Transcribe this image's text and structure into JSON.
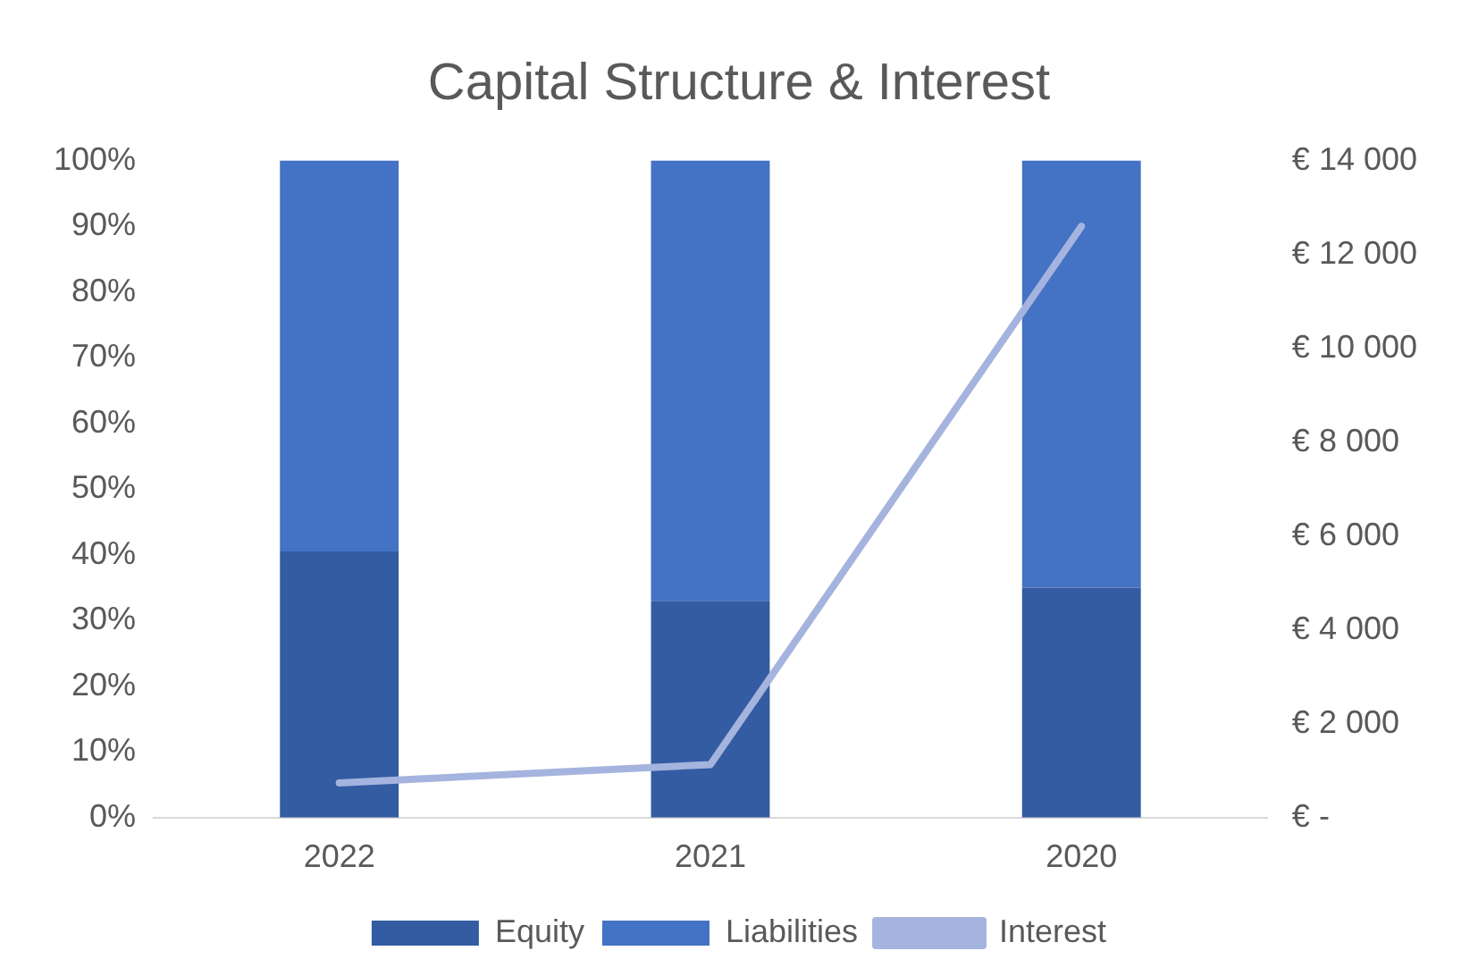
{
  "chart_data": {
    "type": "bar",
    "title": "Capital Structure & Interest",
    "stacked": true,
    "categories": [
      "2022",
      "2021",
      "2020"
    ],
    "series": [
      {
        "name": "Equity",
        "color": "#335ca3",
        "values": [
          40.5,
          33,
          35
        ]
      },
      {
        "name": "Liabilities",
        "color": "#4472c4",
        "values": [
          59.5,
          67,
          65
        ]
      },
      {
        "name": "Interest",
        "type": "line",
        "axis": "y2",
        "color": "#a5b4de",
        "values": [
          740,
          1130,
          12600
        ]
      }
    ],
    "ylim": [
      0,
      100
    ],
    "yticks": [
      {
        "value": 0,
        "label": "0%"
      },
      {
        "value": 10,
        "label": "10%"
      },
      {
        "value": 20,
        "label": "20%"
      },
      {
        "value": 30,
        "label": "30%"
      },
      {
        "value": 40,
        "label": "40%"
      },
      {
        "value": 50,
        "label": "50%"
      },
      {
        "value": 60,
        "label": "60%"
      },
      {
        "value": 70,
        "label": "70%"
      },
      {
        "value": 80,
        "label": "80%"
      },
      {
        "value": 90,
        "label": "90%"
      },
      {
        "value": 100,
        "label": "100%"
      }
    ],
    "y2lim": [
      0,
      14000
    ],
    "y2ticks": [
      {
        "value": 0,
        "label": "€ -"
      },
      {
        "value": 2000,
        "label": "€ 2 000"
      },
      {
        "value": 4000,
        "label": "€ 4 000"
      },
      {
        "value": 6000,
        "label": "€ 6 000"
      },
      {
        "value": 8000,
        "label": "€ 8 000"
      },
      {
        "value": 10000,
        "label": "€ 10 000"
      },
      {
        "value": 12000,
        "label": "€ 12 000"
      },
      {
        "value": 14000,
        "label": "€ 14 000"
      }
    ],
    "grid": false,
    "legend": "bottom",
    "marker": "none"
  }
}
